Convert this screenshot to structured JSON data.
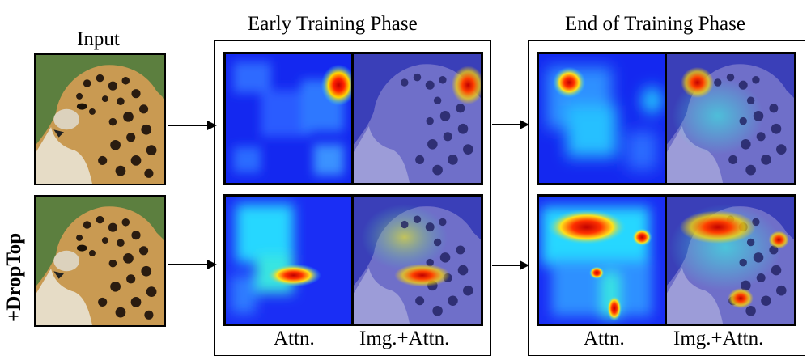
{
  "labels": {
    "input": "Input",
    "early_phase": "Early Training Phase",
    "end_phase": "End of Training Phase",
    "droptop": "+DropTop",
    "attn_early": "Attn.",
    "img_attn_early": "Img.+Attn.",
    "attn_end": "Attn.",
    "img_attn_end": "Img.+Attn."
  },
  "colors": {
    "attn_low": "#1e2cff",
    "attn_mid": "#27d7ff",
    "attn_high": "#ffe21a",
    "attn_peak": "#d80000",
    "leopard_fur": "#c99a52",
    "background_green": "#5c7f3f"
  }
}
